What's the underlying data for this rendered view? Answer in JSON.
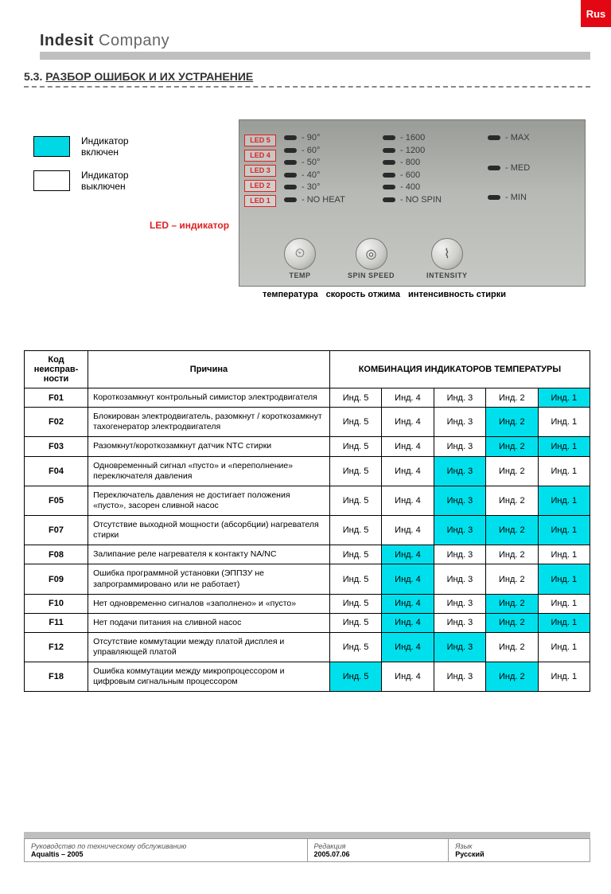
{
  "tab": "Rus",
  "brand_bold": "Indesit",
  "brand_light": "Company",
  "section_number": "5.3.",
  "section_title": "РАЗБОР ОШИБОК И ИХ УСТРАНЕНИЕ",
  "legend": {
    "on": "Индикатор\nвключен",
    "off": "Индикатор\nвыключен",
    "on_color": "#00d8e6",
    "off_color": "#ffffff"
  },
  "led_caption": "LED – индикатор",
  "panel": {
    "leds": [
      "LED 1",
      "LED 2",
      "LED 3",
      "LED 4",
      "LED 5"
    ],
    "temp_values": [
      "- 90°",
      "- 60°",
      "- 50°",
      "- 40°",
      "- 30°",
      "- NO HEAT"
    ],
    "spin_values": [
      "- 1600",
      "- 1200",
      "- 800",
      "- 600",
      "- 400",
      "- NO SPIN"
    ],
    "intensity_values": [
      "- MAX",
      "- MED",
      "- MIN"
    ],
    "knobs": [
      {
        "label": "TEMP",
        "icon": "⏲"
      },
      {
        "label": "SPIN SPEED",
        "icon": "◎"
      },
      {
        "label": "INTENSITY",
        "icon": "⌇"
      }
    ],
    "captions": [
      "температура",
      "скорость отжима",
      "интенсивность стирки"
    ]
  },
  "table": {
    "headers": {
      "code": "Код неисправ-ности",
      "cause": "Причина",
      "combo": "КОМБИНАЦИЯ ИНДИКАТОРОВ ТЕМПЕРАТУРЫ"
    },
    "indicator_labels": [
      "Инд. 5",
      "Инд. 4",
      "Инд. 3",
      "Инд. 2",
      "Инд. 1"
    ],
    "on_color": "#00e0ec",
    "rows": [
      {
        "code": "F01",
        "cause": "Короткозамкнут контрольный симистор электродвигателя",
        "leds": [
          0,
          0,
          0,
          0,
          1
        ]
      },
      {
        "code": "F02",
        "cause": "Блокирован электродвигатель, разомкнут / короткозамкнут тахогенератор электродвигателя",
        "leds": [
          0,
          0,
          0,
          1,
          0
        ]
      },
      {
        "code": "F03",
        "cause": "Разомкнут/короткозамкнут датчик NTC стирки",
        "leds": [
          0,
          0,
          0,
          1,
          1
        ]
      },
      {
        "code": "F04",
        "cause": "Одновременный сигнал «пусто» и «переполнение» переключателя давления",
        "leds": [
          0,
          0,
          1,
          0,
          0
        ]
      },
      {
        "code": "F05",
        "cause": "Переключатель давления не достигает положения «пусто», засорен сливной насос",
        "leds": [
          0,
          0,
          1,
          0,
          1
        ]
      },
      {
        "code": "F07",
        "cause": "Отсутствие выходной мощности (абсорбции) нагревателя стирки",
        "leds": [
          0,
          0,
          1,
          1,
          1
        ]
      },
      {
        "code": "F08",
        "cause": "Залипание реле нагревателя к контакту NA/NC",
        "leds": [
          0,
          1,
          0,
          0,
          0
        ]
      },
      {
        "code": "F09",
        "cause": "Ошибка программной установки (ЭППЗУ не запрограммировано или не работает)",
        "leds": [
          0,
          1,
          0,
          0,
          1
        ]
      },
      {
        "code": "F10",
        "cause": "Нет одновременно сигналов «заполнено» и «пусто»",
        "leds": [
          0,
          1,
          0,
          1,
          0
        ]
      },
      {
        "code": "F11",
        "cause": "Нет подачи питания на сливной насос",
        "leds": [
          0,
          1,
          0,
          1,
          1
        ]
      },
      {
        "code": "F12",
        "cause": "Отсутствие коммутации между платой дисплея и управляющей платой",
        "leds": [
          0,
          1,
          1,
          0,
          0
        ]
      },
      {
        "code": "F18",
        "cause": "Ошибка коммутации между микропроцессором и цифровым сигнальным процессором",
        "leds": [
          1,
          0,
          0,
          1,
          0
        ]
      }
    ]
  },
  "footer": {
    "manual_lbl": "Руководство по техническому обслуживанию",
    "manual_val": "Aqualtis – 2005",
    "edition_lbl": "Редакция",
    "edition_val": "2005.07.06",
    "lang_lbl": "Язык",
    "lang_val": "Русский"
  }
}
